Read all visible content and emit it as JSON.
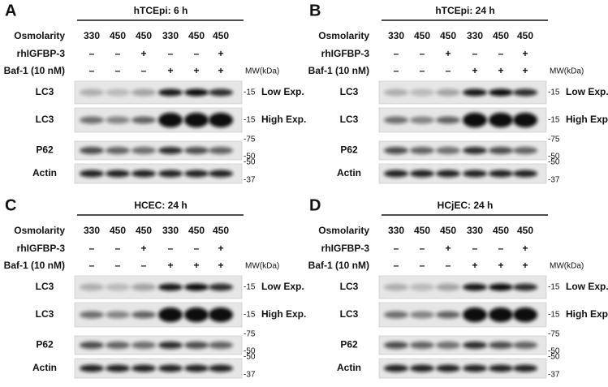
{
  "panels": [
    {
      "label": "A",
      "title": "hTCEpi: 6 h",
      "conditions": [
        {
          "name": "Osmolarity",
          "values": [
            330,
            450,
            450,
            330,
            450,
            450
          ]
        },
        {
          "name": "rhIGFBP-3",
          "values": [
            "–",
            "–",
            "+",
            "–",
            "–",
            "+"
          ]
        },
        {
          "name": "Baf-1 (10 nM)",
          "values": [
            "–",
            "–",
            "–",
            "+",
            "+",
            "+"
          ]
        }
      ],
      "mw_unit": "MW(kDa)",
      "blots": [
        {
          "label": "LC3",
          "markers": [
            "-15"
          ],
          "note": "Low Exp."
        },
        {
          "label": "LC3",
          "markers": [
            "-15"
          ],
          "note": "High Exp."
        },
        {
          "label": "P62",
          "markers": [
            "-75",
            "-50"
          ]
        },
        {
          "label": "Actin",
          "markers": [
            "-50",
            "-37"
          ]
        }
      ]
    },
    {
      "label": "B",
      "title": "hTCEpi: 24 h",
      "conditions": [
        {
          "name": "Osmolarity",
          "values": [
            330,
            450,
            450,
            330,
            450,
            450
          ]
        },
        {
          "name": "rhIGFBP-3",
          "values": [
            "–",
            "–",
            "+",
            "–",
            "–",
            "+"
          ]
        },
        {
          "name": "Baf-1 (10 nM)",
          "values": [
            "–",
            "–",
            "–",
            "+",
            "+",
            "+"
          ]
        }
      ],
      "mw_unit": "MW(kDa)",
      "blots": [
        {
          "label": "LC3",
          "markers": [
            "-15"
          ],
          "note": "Low Exp."
        },
        {
          "label": "LC3",
          "markers": [
            "-15"
          ],
          "note": "High Exp."
        },
        {
          "label": "P62",
          "markers": [
            "-75",
            "-50"
          ]
        },
        {
          "label": "Actin",
          "markers": [
            "-50",
            "-37"
          ]
        }
      ]
    },
    {
      "label": "C",
      "title": "HCEC: 24 h",
      "conditions": [
        {
          "name": "Osmolarity",
          "values": [
            330,
            450,
            450,
            330,
            450,
            450
          ]
        },
        {
          "name": "rhIGFBP-3",
          "values": [
            "–",
            "–",
            "+",
            "–",
            "–",
            "+"
          ]
        },
        {
          "name": "Baf-1 (10 nM)",
          "values": [
            "–",
            "–",
            "–",
            "+",
            "+",
            "+"
          ]
        }
      ],
      "mw_unit": "MW(kDa)",
      "blots": [
        {
          "label": "LC3",
          "markers": [
            "-15"
          ],
          "note": "Low Exp."
        },
        {
          "label": "LC3",
          "markers": [
            "-15"
          ],
          "note": "High Exp."
        },
        {
          "label": "P62",
          "markers": [
            "-75",
            "-50"
          ]
        },
        {
          "label": "Actin",
          "markers": [
            "-50",
            "-37"
          ]
        }
      ]
    },
    {
      "label": "D",
      "title": "HCjEC: 24 h",
      "conditions": [
        {
          "name": "Osmolarity",
          "values": [
            330,
            450,
            450,
            330,
            450,
            450
          ]
        },
        {
          "name": "rhIGFBP-3",
          "values": [
            "–",
            "–",
            "+",
            "–",
            "–",
            "+"
          ]
        },
        {
          "name": "Baf-1 (10 nM)",
          "values": [
            "–",
            "–",
            "–",
            "+",
            "+",
            "+"
          ]
        }
      ],
      "mw_unit": "MW(kDa)",
      "blots": [
        {
          "label": "LC3",
          "markers": [
            "-15"
          ],
          "note": "Low Exp."
        },
        {
          "label": "LC3",
          "markers": [
            "-15"
          ],
          "note": "High Exp."
        },
        {
          "label": "P62",
          "markers": [
            "-75",
            "-50"
          ]
        },
        {
          "label": "Actin",
          "markers": [
            "-50",
            "-37"
          ]
        }
      ]
    }
  ]
}
